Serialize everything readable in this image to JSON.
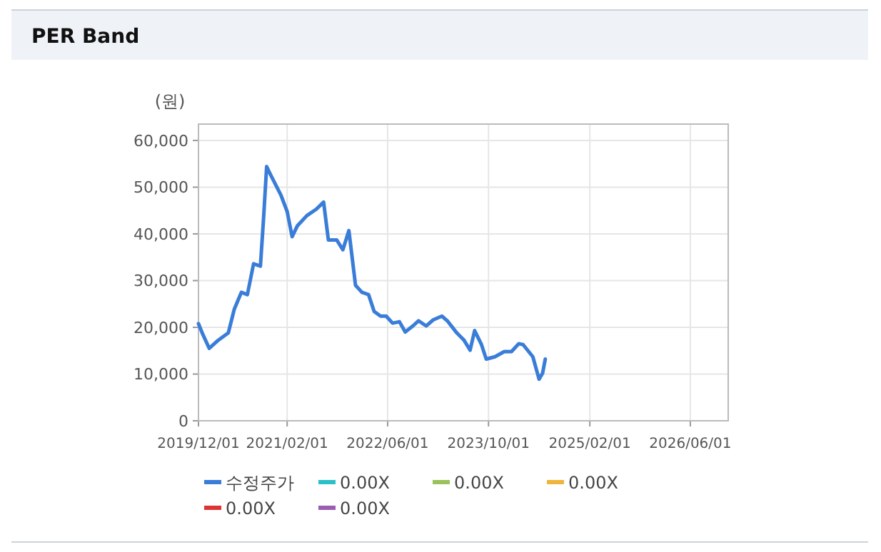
{
  "chart_data": {
    "type": "line",
    "title": "PER Band",
    "ylabel": "(원)",
    "xlim": [
      "2019-12-01",
      "2026-12-01"
    ],
    "ylim": [
      0,
      63500
    ],
    "xticks": [
      {
        "value": "2019-12-01",
        "label": "2019/12/01"
      },
      {
        "value": "2021-02-01",
        "label": "2021/02/01"
      },
      {
        "value": "2022-06-01",
        "label": "2022/06/01"
      },
      {
        "value": "2023-10-01",
        "label": "2023/10/01"
      },
      {
        "value": "2025-02-01",
        "label": "2025/02/01"
      },
      {
        "value": "2026-06-01",
        "label": "2026/06/01"
      }
    ],
    "yticks": [
      0,
      {
        "value": 10000,
        "label": "10,000"
      },
      {
        "value": 20000,
        "label": "20,000"
      },
      {
        "value": 30000,
        "label": "30,000"
      },
      {
        "value": 40000,
        "label": "40,000"
      },
      {
        "value": 50000,
        "label": "50,000"
      },
      {
        "value": 60000,
        "label": "60,000"
      }
    ],
    "grid": true,
    "legend": "bottom",
    "marker": "none",
    "line_style": "solid",
    "series": [
      {
        "name": "수정주가",
        "color": "#3a7dd8",
        "x": [
          "2019-12-01",
          "2019-12-19",
          "2020-01-22",
          "2020-03-07",
          "2020-04-23",
          "2020-05-22",
          "2020-06-25",
          "2020-07-24",
          "2020-08-23",
          "2020-09-25",
          "2020-10-10",
          "2020-10-25",
          "2020-11-16",
          "2021-01-02",
          "2021-02-01",
          "2021-02-25",
          "2021-03-22",
          "2021-05-07",
          "2021-06-22",
          "2021-07-27",
          "2021-08-19",
          "2021-09-28",
          "2021-10-28",
          "2021-11-26",
          "2021-12-28",
          "2022-01-28",
          "2022-03-01",
          "2022-03-28",
          "2022-04-28",
          "2022-05-25",
          "2022-06-25",
          "2022-07-28",
          "2022-08-25",
          "2022-10-01",
          "2022-10-28",
          "2022-12-04",
          "2023-01-07",
          "2023-02-18",
          "2023-03-16",
          "2023-05-01",
          "2023-06-04",
          "2023-07-04",
          "2023-07-26",
          "2023-08-28",
          "2023-09-20",
          "2023-11-01",
          "2023-12-16",
          "2024-01-20",
          "2024-02-24",
          "2024-03-16",
          "2024-05-02",
          "2024-06-01",
          "2024-06-18",
          "2024-07-01"
        ],
        "values": [
          20800,
          18800,
          15500,
          17300,
          18800,
          23900,
          27500,
          27000,
          33600,
          33100,
          43200,
          54400,
          52400,
          48300,
          44800,
          39400,
          41700,
          43900,
          45300,
          46800,
          38700,
          38700,
          36600,
          40700,
          29000,
          27500,
          27000,
          23400,
          22400,
          22400,
          20900,
          21200,
          19000,
          20300,
          21400,
          20300,
          21600,
          22400,
          21400,
          18800,
          17300,
          15100,
          19300,
          16300,
          13200,
          13700,
          14800,
          14800,
          16500,
          16300,
          13700,
          8900,
          10200,
          13200
        ]
      },
      {
        "name": "0.00X",
        "color": "#2bc0c8"
      },
      {
        "name": "0.00X",
        "color": "#99c25a"
      },
      {
        "name": "0.00X",
        "color": "#f0b43c"
      },
      {
        "name": "0.00X",
        "color": "#dd3333"
      },
      {
        "name": "0.00X",
        "color": "#9a5cb4"
      }
    ]
  }
}
